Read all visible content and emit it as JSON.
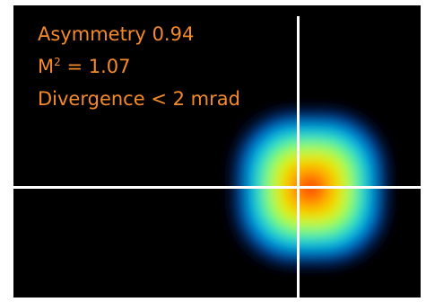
{
  "readouts": {
    "asymmetry_label": "Asymmetry",
    "asymmetry_value": "0.94",
    "m2_label": "M",
    "m2_superscript": "2",
    "m2_value": "= 1.07",
    "divergence": "Divergence < 2 mrad"
  },
  "colors": {
    "text": "#f58a2a",
    "background": "#000000",
    "crosshair": "#ffffff"
  },
  "beam_colormap": [
    "#ff0000",
    "#ff7a00",
    "#ffd400",
    "#d8ff00",
    "#33ff33",
    "#00e6d2",
    "#0066ff",
    "#000000"
  ]
}
